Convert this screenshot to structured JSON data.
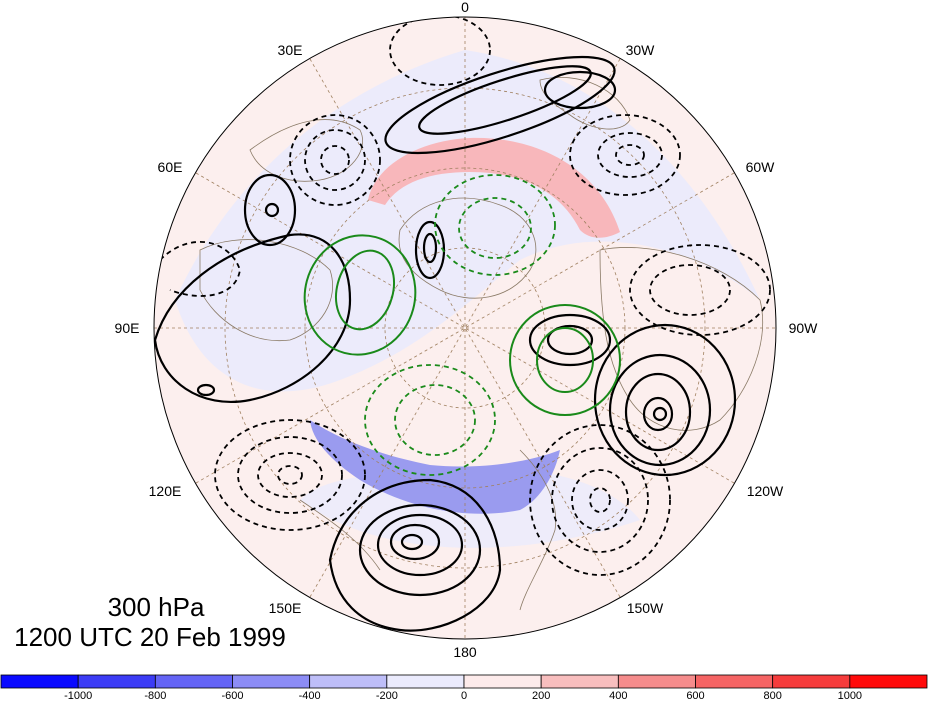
{
  "map": {
    "projection": "north-polar-stereographic",
    "longitude_labels": [
      {
        "text": "0",
        "name": "lon-label-0"
      },
      {
        "text": "30E",
        "name": "lon-label-30e"
      },
      {
        "text": "30W",
        "name": "lon-label-30w"
      },
      {
        "text": "60E",
        "name": "lon-label-60e"
      },
      {
        "text": "60W",
        "name": "lon-label-60w"
      },
      {
        "text": "90E",
        "name": "lon-label-90e"
      },
      {
        "text": "90W",
        "name": "lon-label-90w"
      },
      {
        "text": "120E",
        "name": "lon-label-120e"
      },
      {
        "text": "120W",
        "name": "lon-label-120w"
      },
      {
        "text": "150E",
        "name": "lon-label-150e"
      },
      {
        "text": "150W",
        "name": "lon-label-150w"
      },
      {
        "text": "180",
        "name": "lon-label-180"
      }
    ],
    "contours": {
      "positive_color": "#000000",
      "negative_style": "dashed",
      "overlay_color": "#1a8a1a"
    }
  },
  "title": {
    "level": "300 hPa",
    "time": "1200 UTC 20 Feb 1999"
  },
  "colorbar": {
    "ticks": [
      "-1000",
      "-800",
      "-600",
      "-400",
      "-200",
      "0",
      "200",
      "400",
      "600",
      "800",
      "1000"
    ],
    "colors": [
      "#0a0aff",
      "#3c3cf5",
      "#6464f5",
      "#8c8cf5",
      "#bebef8",
      "#ebebfd",
      "#fdebeb",
      "#f8bebe",
      "#f58c8c",
      "#f56464",
      "#f53c3c",
      "#ff0a0a"
    ]
  }
}
